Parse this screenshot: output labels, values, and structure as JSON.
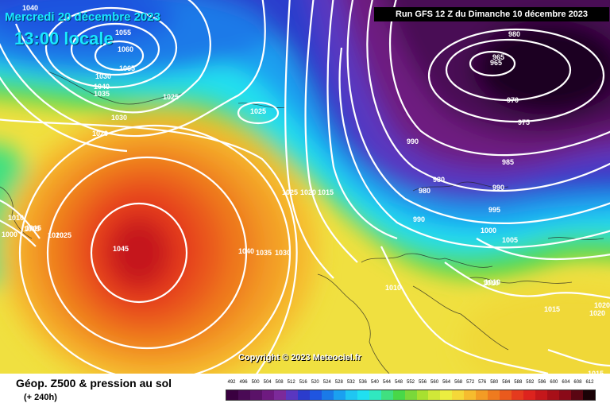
{
  "header": {
    "date_line": "Mercredi 20 décembre 2023",
    "time_line": "13:00 locale",
    "run_info": "Run GFS 12 Z du Dimanche 10 décembre 2023"
  },
  "footer": {
    "title": "Géop. Z500 & pression au sol",
    "forecast_offset": "(+ 240h)"
  },
  "copyright": "Copyright © 2023 Meteociel.fr",
  "colors": {
    "low_purple": "#5a0a6a",
    "deep_blue": "#1f2fb3",
    "cyan": "#20e0f0",
    "green": "#3fd64a",
    "yellow": "#f0e040",
    "orange": "#f2951b",
    "red": "#e8261e",
    "dark_red": "#b50f16",
    "isobar": "#ffffff"
  },
  "scale": {
    "unit_values": [
      "492",
      "496",
      "500",
      "504",
      "508",
      "512",
      "516",
      "520",
      "524",
      "528",
      "532",
      "536",
      "540",
      "544",
      "548",
      "552",
      "556",
      "560",
      "564",
      "568",
      "572",
      "576",
      "580",
      "584",
      "588",
      "592",
      "596",
      "600",
      "604",
      "608",
      "612"
    ],
    "colors": [
      "#3a0040",
      "#4a0a55",
      "#5a1268",
      "#6e1a80",
      "#7c2a9a",
      "#5a37c0",
      "#2b3ccc",
      "#1f55e0",
      "#1a7ae8",
      "#1aa0f0",
      "#1fc6f2",
      "#20e0f0",
      "#30e8c0",
      "#40e080",
      "#48d848",
      "#7ad83a",
      "#a8e030",
      "#d0e838",
      "#ecee40",
      "#f5d838",
      "#f6bc2e",
      "#f39c25",
      "#ef7b1f",
      "#ea5a1d",
      "#e53a1e",
      "#dd231e",
      "#c5171b",
      "#a80f18",
      "#8a0a18",
      "#5a0612",
      "#1a0206"
    ]
  },
  "pressure_labels": [
    {
      "text": "1040",
      "name": "label-1040-top"
    },
    {
      "text": "1055",
      "name": "label-1055"
    },
    {
      "text": "1060",
      "name": "label-1060"
    },
    {
      "text": "1065",
      "name": "label-1065"
    },
    {
      "text": "1030",
      "name": "label-1030-a"
    },
    {
      "text": "1040",
      "name": "label-1040-b"
    },
    {
      "text": "1035",
      "name": "label-1035-a"
    },
    {
      "text": "1025",
      "name": "label-1025-a"
    },
    {
      "text": "1030",
      "name": "label-1030-b"
    },
    {
      "text": "1025",
      "name": "label-1025-b"
    },
    {
      "text": "1020",
      "name": "label-1020-a"
    },
    {
      "text": "980",
      "name": "label-980-a"
    },
    {
      "text": "965",
      "name": "label-965-a"
    },
    {
      "text": "965",
      "name": "label-965-b"
    },
    {
      "text": "970",
      "name": "label-970"
    },
    {
      "text": "975",
      "name": "label-975"
    },
    {
      "text": "990",
      "name": "label-990-a"
    },
    {
      "text": "985",
      "name": "label-985"
    },
    {
      "text": "980",
      "name": "label-980-b"
    },
    {
      "text": "980",
      "name": "label-980-c"
    },
    {
      "text": "990",
      "name": "label-990-b"
    },
    {
      "text": "990",
      "name": "label-990-c"
    },
    {
      "text": "995",
      "name": "label-995"
    },
    {
      "text": "1025",
      "name": "label-1025-c"
    },
    {
      "text": "1020",
      "name": "label-1020-b"
    },
    {
      "text": "1015",
      "name": "label-1015-a"
    },
    {
      "text": "1000",
      "name": "label-1000"
    },
    {
      "text": "1005",
      "name": "label-1005"
    },
    {
      "text": "1010",
      "name": "label-1010-a"
    },
    {
      "text": "1015",
      "name": "label-1015-b"
    },
    {
      "text": "1020",
      "name": "label-1020-c"
    },
    {
      "text": "1020",
      "name": "label-1020-d"
    },
    {
      "text": "1025",
      "name": "label-1025-d"
    },
    {
      "text": "1045",
      "name": "label-1045"
    },
    {
      "text": "1040",
      "name": "label-1040-c"
    },
    {
      "text": "1035",
      "name": "label-1035-b"
    },
    {
      "text": "1030",
      "name": "label-1030-c"
    },
    {
      "text": "1010",
      "name": "label-1010-b"
    },
    {
      "text": "1010",
      "name": "label-1010-c"
    },
    {
      "text": "1015",
      "name": "label-1015-c"
    },
    {
      "text": "1020",
      "name": "label-1020-e"
    },
    {
      "text": "1015",
      "name": "label-1015-d"
    },
    {
      "text": "1015",
      "name": "label-1015-e"
    },
    {
      "text": "1000",
      "name": "label-1000-w"
    },
    {
      "text": "1015",
      "name": "label-1015-w"
    },
    {
      "text": "1010",
      "name": "label-1010-w"
    }
  ]
}
